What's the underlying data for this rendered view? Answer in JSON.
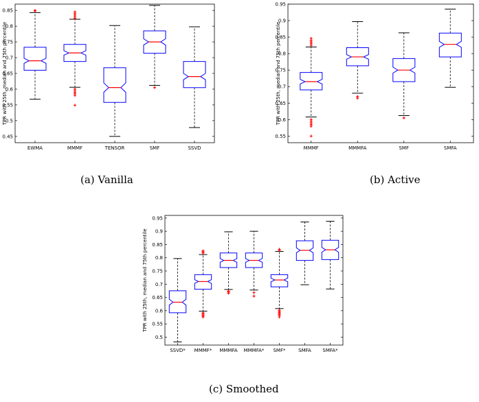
{
  "captions": [
    "(a)  Vanilla",
    "(b)  Active",
    "(c)  Smoothed"
  ],
  "colors": {
    "box": "#0000ff",
    "median": "#ff0000",
    "outlier": "#ff0000",
    "whisker": "#000000"
  },
  "chart_data": [
    {
      "type": "box",
      "ylabel": "TPR with 25th, median and 75th percentile",
      "ylim": [
        0.43,
        0.87
      ],
      "yticks": [
        "0.45",
        "0.5",
        "0.55",
        "0.6",
        "0.65",
        "0.7",
        "0.75",
        "0.8",
        "0.85"
      ],
      "categories": [
        "EWMA",
        "MMMF",
        "TENSOR",
        "SMF",
        "SSVD"
      ],
      "boxes": [
        {
          "whislo": 0.568,
          "q1": 0.66,
          "med": 0.69,
          "q3": 0.733,
          "whishi": 0.843,
          "notch": [
            0.682,
            0.698
          ],
          "outliers": [
            0.848,
            0.85
          ]
        },
        {
          "whislo": 0.606,
          "q1": 0.688,
          "med": 0.715,
          "q3": 0.742,
          "whishi": 0.822,
          "notch": [
            0.708,
            0.722
          ],
          "outliers": [
            0.6,
            0.595,
            0.59,
            0.585,
            0.58,
            0.549,
            0.825,
            0.83,
            0.835,
            0.84,
            0.845
          ]
        },
        {
          "whislo": 0.45,
          "q1": 0.558,
          "med": 0.605,
          "q3": 0.668,
          "whishi": 0.802,
          "notch": [
            0.59,
            0.62
          ],
          "outliers": []
        },
        {
          "whislo": 0.612,
          "q1": 0.714,
          "med": 0.75,
          "q3": 0.785,
          "whishi": 0.866,
          "notch": [
            0.74,
            0.76
          ],
          "outliers": [
            0.605
          ]
        },
        {
          "whislo": 0.478,
          "q1": 0.605,
          "med": 0.64,
          "q3": 0.688,
          "whishi": 0.798,
          "notch": [
            0.63,
            0.65
          ],
          "outliers": []
        }
      ]
    },
    {
      "type": "box",
      "ylabel": "TPR with 25th, median and 75th percentile",
      "ylim": [
        0.53,
        0.95
      ],
      "yticks": [
        "0.55",
        "0.6",
        "0.65",
        "0.7",
        "0.75",
        "0.8",
        "0.85",
        "0.9",
        "0.95"
      ],
      "categories": [
        "MMMF",
        "MMMFA",
        "SMF",
        "SMFA"
      ],
      "boxes": [
        {
          "whislo": 0.608,
          "q1": 0.69,
          "med": 0.715,
          "q3": 0.743,
          "whishi": 0.82,
          "notch": [
            0.708,
            0.722
          ],
          "outliers": [
            0.6,
            0.595,
            0.59,
            0.585,
            0.58,
            0.55,
            0.825,
            0.83,
            0.835,
            0.84,
            0.846
          ]
        },
        {
          "whislo": 0.68,
          "q1": 0.763,
          "med": 0.79,
          "q3": 0.818,
          "whishi": 0.897,
          "notch": [
            0.783,
            0.797
          ],
          "outliers": [
            0.67,
            0.665
          ]
        },
        {
          "whislo": 0.612,
          "q1": 0.715,
          "med": 0.75,
          "q3": 0.785,
          "whishi": 0.863,
          "notch": [
            0.741,
            0.759
          ],
          "outliers": [
            0.605
          ]
        },
        {
          "whislo": 0.698,
          "q1": 0.79,
          "med": 0.828,
          "q3": 0.862,
          "whishi": 0.935,
          "notch": [
            0.819,
            0.837
          ],
          "outliers": []
        }
      ]
    },
    {
      "type": "box",
      "ylabel": "TPR with 25th, median and 75th percentile",
      "ylim": [
        0.47,
        0.96
      ],
      "yticks": [
        "0.5",
        "0.55",
        "0.6",
        "0.65",
        "0.7",
        "0.75",
        "0.8",
        "0.85",
        "0.9",
        "0.95"
      ],
      "categories": [
        "SSVD*",
        "MMMF*",
        "MMMFA",
        "MMMFA*",
        "SMF*",
        "SMFA",
        "SMFA*"
      ],
      "boxes": [
        {
          "whislo": 0.482,
          "q1": 0.592,
          "med": 0.632,
          "q3": 0.675,
          "whishi": 0.797,
          "notch": [
            0.621,
            0.643
          ],
          "outliers": []
        },
        {
          "whislo": 0.598,
          "q1": 0.681,
          "med": 0.71,
          "q3": 0.736,
          "whishi": 0.812,
          "notch": [
            0.703,
            0.717
          ],
          "outliers": [
            0.592,
            0.588,
            0.584,
            0.58,
            0.576,
            0.818,
            0.822,
            0.826
          ]
        },
        {
          "whislo": 0.68,
          "q1": 0.763,
          "med": 0.79,
          "q3": 0.818,
          "whishi": 0.898,
          "notch": [
            0.783,
            0.797
          ],
          "outliers": [
            0.674,
            0.67,
            0.666
          ]
        },
        {
          "whislo": 0.678,
          "q1": 0.763,
          "med": 0.79,
          "q3": 0.818,
          "whishi": 0.9,
          "notch": [
            0.783,
            0.797
          ],
          "outliers": [
            0.668,
            0.655
          ]
        },
        {
          "whislo": 0.608,
          "q1": 0.69,
          "med": 0.716,
          "q3": 0.736,
          "whishi": 0.824,
          "notch": [
            0.709,
            0.723
          ],
          "outliers": [
            0.602,
            0.598,
            0.594,
            0.59,
            0.586,
            0.582,
            0.576,
            0.828,
            0.832
          ]
        },
        {
          "whislo": 0.698,
          "q1": 0.79,
          "med": 0.828,
          "q3": 0.864,
          "whishi": 0.935,
          "notch": [
            0.819,
            0.837
          ],
          "outliers": []
        },
        {
          "whislo": 0.682,
          "q1": 0.793,
          "med": 0.83,
          "q3": 0.866,
          "whishi": 0.938,
          "notch": [
            0.821,
            0.839
          ],
          "outliers": []
        }
      ]
    }
  ]
}
